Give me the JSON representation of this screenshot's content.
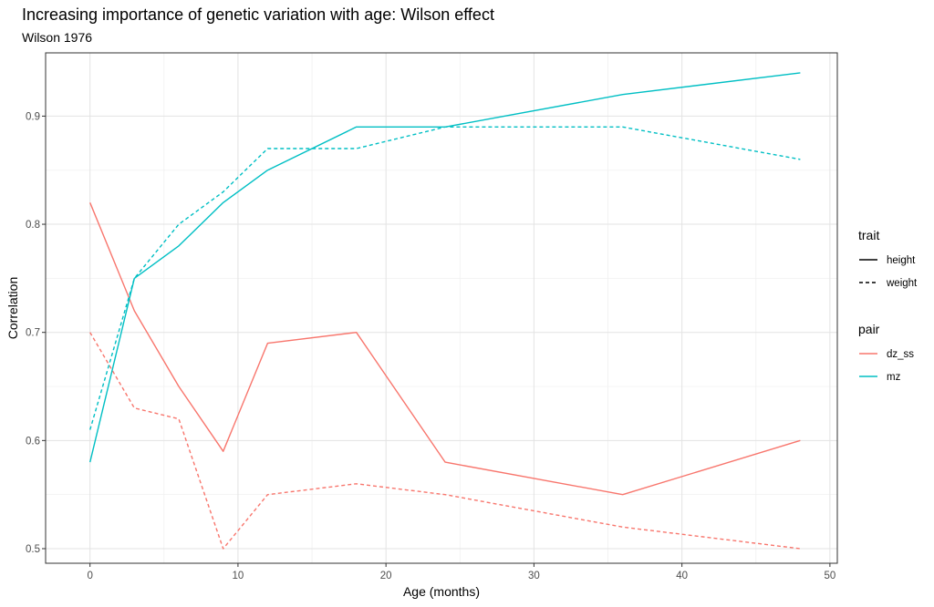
{
  "chart_data": {
    "type": "line",
    "title": "Increasing importance of genetic variation with age: Wilson effect",
    "subtitle": "Wilson 1976",
    "xlabel": "Age (months)",
    "ylabel": "Correlation",
    "xlim": [
      -3,
      50.5
    ],
    "ylim": [
      0.4865,
      0.9585
    ],
    "x_ticks": [
      0,
      10,
      20,
      30,
      40,
      50
    ],
    "x_tick_labels": [
      "0",
      "10",
      "20",
      "30",
      "40",
      "50"
    ],
    "y_ticks": [
      0.5,
      0.6,
      0.7,
      0.8,
      0.9
    ],
    "y_tick_labels": [
      "0.5",
      "0.6",
      "0.7",
      "0.8",
      "0.9"
    ],
    "grid": true,
    "legend_position": "right",
    "legends": [
      {
        "title": "trait",
        "kind": "linetype",
        "items": [
          {
            "label": "height",
            "dash": "solid"
          },
          {
            "label": "weight",
            "dash": "dashed"
          }
        ]
      },
      {
        "title": "pair",
        "kind": "color",
        "items": [
          {
            "label": "dz_ss",
            "color": "#F8766D"
          },
          {
            "label": "mz",
            "color": "#00BFC4"
          }
        ]
      }
    ],
    "series": [
      {
        "pair": "dz_ss",
        "trait": "height",
        "color": "#F8766D",
        "dash": "solid",
        "x": [
          0,
          3,
          6,
          9,
          12,
          18,
          24,
          36,
          48
        ],
        "y": [
          0.82,
          0.72,
          0.65,
          0.59,
          0.69,
          0.7,
          0.58,
          0.55,
          0.6
        ]
      },
      {
        "pair": "dz_ss",
        "trait": "weight",
        "color": "#F8766D",
        "dash": "dashed",
        "x": [
          0,
          3,
          6,
          9,
          12,
          18,
          24,
          36,
          48
        ],
        "y": [
          0.7,
          0.63,
          0.62,
          0.5,
          0.55,
          0.56,
          0.55,
          0.52,
          0.5
        ]
      },
      {
        "pair": "mz",
        "trait": "height",
        "color": "#00BFC4",
        "dash": "solid",
        "x": [
          0,
          3,
          6,
          9,
          12,
          18,
          24,
          36,
          48
        ],
        "y": [
          0.58,
          0.75,
          0.78,
          0.82,
          0.85,
          0.89,
          0.89,
          0.92,
          0.94
        ]
      },
      {
        "pair": "mz",
        "trait": "weight",
        "color": "#00BFC4",
        "dash": "dashed",
        "x": [
          0,
          3,
          6,
          9,
          12,
          18,
          24,
          36,
          48
        ],
        "y": [
          0.61,
          0.75,
          0.8,
          0.83,
          0.87,
          0.87,
          0.89,
          0.89,
          0.86
        ]
      }
    ]
  }
}
